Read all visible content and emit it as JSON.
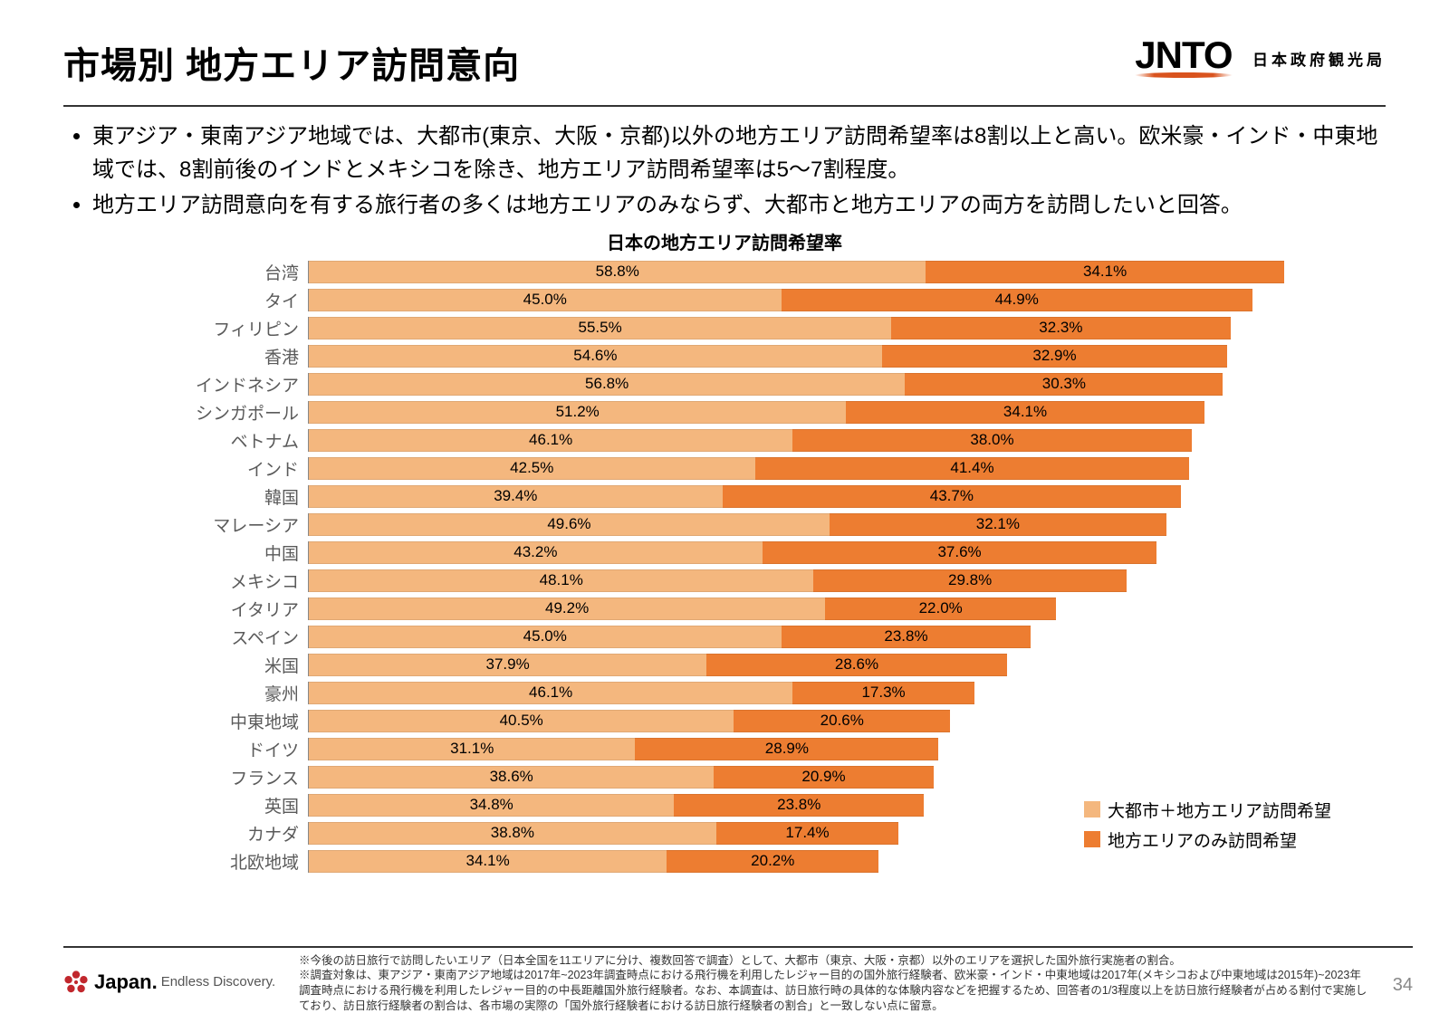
{
  "page": {
    "title": "市場別 地方エリア訪問意向",
    "logo_main": "JNTO",
    "logo_sub": "日本政府観光局",
    "page_number": "34"
  },
  "bullets": [
    "東アジア・東南アジア地域では、大都市(東京、大阪・京都)以外の地方エリア訪問希望率は8割以上と高い。欧米豪・インド・中東地域では、8割前後のインドとメキシコを除き、地方エリア訪問希望率は5～7割程度。",
    "地方エリア訪問意向を有する旅行者の多くは地方エリアのみならず、大都市と地方エリアの両方を訪問したいと回答。"
  ],
  "chart": {
    "title": "日本の地方エリア訪問希望率",
    "type": "stacked-horizontal-bar",
    "max_pct": 100,
    "colors": {
      "series1": "#f4b77e",
      "series2": "#ed7d31",
      "text": "#000000"
    },
    "legend": {
      "series1": "大都市＋地方エリア訪問希望",
      "series2": "地方エリアのみ訪問希望"
    },
    "rows": [
      {
        "label": "台湾",
        "v1": 58.8,
        "v2": 34.1
      },
      {
        "label": "タイ",
        "v1": 45.0,
        "v2": 44.9
      },
      {
        "label": "フィリピン",
        "v1": 55.5,
        "v2": 32.3
      },
      {
        "label": "香港",
        "v1": 54.6,
        "v2": 32.9
      },
      {
        "label": "インドネシア",
        "v1": 56.8,
        "v2": 30.3
      },
      {
        "label": "シンガポール",
        "v1": 51.2,
        "v2": 34.1
      },
      {
        "label": "ベトナム",
        "v1": 46.1,
        "v2": 38.0
      },
      {
        "label": "インド",
        "v1": 42.5,
        "v2": 41.4
      },
      {
        "label": "韓国",
        "v1": 39.4,
        "v2": 43.7
      },
      {
        "label": "マレーシア",
        "v1": 49.6,
        "v2": 32.1
      },
      {
        "label": "中国",
        "v1": 43.2,
        "v2": 37.6
      },
      {
        "label": "メキシコ",
        "v1": 48.1,
        "v2": 29.8
      },
      {
        "label": "イタリア",
        "v1": 49.2,
        "v2": 22.0
      },
      {
        "label": "スペイン",
        "v1": 45.0,
        "v2": 23.8
      },
      {
        "label": "米国",
        "v1": 37.9,
        "v2": 28.6
      },
      {
        "label": "豪州",
        "v1": 46.1,
        "v2": 17.3
      },
      {
        "label": "中東地域",
        "v1": 40.5,
        "v2": 20.6
      },
      {
        "label": "ドイツ",
        "v1": 31.1,
        "v2": 28.9
      },
      {
        "label": "フランス",
        "v1": 38.6,
        "v2": 20.9
      },
      {
        "label": "英国",
        "v1": 34.8,
        "v2": 23.8
      },
      {
        "label": "カナダ",
        "v1": 38.8,
        "v2": 17.4
      },
      {
        "label": "北欧地域",
        "v1": 34.1,
        "v2": 20.2
      }
    ]
  },
  "footnotes": [
    "※今後の訪日旅行で訪問したいエリア（日本全国を11エリアに分け、複数回答で調査）として、大都市（東京、大阪・京都）以外のエリアを選択した国外旅行実施者の割合。",
    "※調査対象は、東アジア・東南アジア地域は2017年~2023年調査時点における飛行機を利用したレジャー目的の国外旅行経験者、欧米豪・インド・中東地域は2017年(メキシコおよび中東地域は2015年)~2023年調査時点における飛行機を利用したレジャー目的の中長距離国外旅行経験者。なお、本調査は、訪日旅行時の具体的な体験内容などを把握するため、回答者の1/3程度以上を訪日旅行経験者が占める割付で実施しており、訪日旅行経験者の割合は、各市場の実際の「国外旅行経験者における訪日旅行経験者の割合」と一致しない点に留意。"
  ],
  "footer_logo": {
    "brand": "Japan.",
    "tag": "Endless Discovery."
  }
}
